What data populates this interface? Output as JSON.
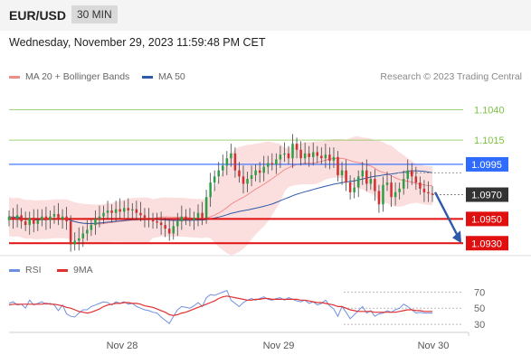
{
  "header": {
    "pair": "EUR/USD",
    "timeframe": "30 MIN",
    "datetime": "Wednesday, November 29, 2023 11:59:48 PM CET"
  },
  "legend": {
    "ma20_label": "MA 20 + Bollinger Bands",
    "ma20_color": "#f28b8b",
    "ma50_label": "MA 50",
    "ma50_color": "#2e5aa8",
    "credit": "Research © 2023 Trading Central"
  },
  "rsi_legend": {
    "rsi_label": "RSI",
    "rsi_color": "#6f8fe0",
    "ma9_label": "9MA",
    "ma9_color": "#e03030"
  },
  "chart_data": [
    {
      "type": "candlestick",
      "title": "EUR/USD",
      "timeframe": "30 MIN",
      "price_range": [
        1.0922,
        1.1056
      ],
      "levels": [
        {
          "value": 1.104,
          "label": "1.1040",
          "style": "resistance-target",
          "color": "#7cc242"
        },
        {
          "value": 1.1015,
          "label": "1.1015",
          "style": "resistance-target",
          "color": "#7cc242"
        },
        {
          "value": 1.0995,
          "label": "1.0995",
          "style": "pivot",
          "color": "#2f6bff"
        },
        {
          "value": 1.097,
          "label": "1.0970",
          "style": "last-price",
          "color": "#333333"
        },
        {
          "value": 1.095,
          "label": "1.0950",
          "style": "support",
          "color": "#e01010"
        },
        {
          "value": 1.093,
          "label": "1.0930",
          "style": "support",
          "color": "#e01010"
        }
      ],
      "x_ticks": [
        "Nov 28",
        "Nov 29",
        "Nov 30"
      ],
      "projection": {
        "from": 1.0972,
        "to": 1.093,
        "direction": "down",
        "color": "#2e5aa8"
      },
      "close_series": [
        1.0952,
        1.095,
        1.0953,
        1.0948,
        1.0945,
        1.0951,
        1.0946,
        1.0949,
        1.0952,
        1.0949,
        1.0952,
        1.0954,
        1.095,
        1.0952,
        1.0948,
        1.0929,
        1.0932,
        1.0934,
        1.0938,
        1.0941,
        1.0945,
        1.095,
        1.0952,
        1.0955,
        1.0957,
        1.0955,
        1.0958,
        1.0956,
        1.0959,
        1.0957,
        1.0958,
        1.0955,
        1.0953,
        1.0951,
        1.095,
        1.0948,
        1.0947,
        1.0945,
        1.0942,
        1.0938,
        1.0944,
        1.0948,
        1.0952,
        1.0951,
        1.0949,
        1.0951,
        1.0955,
        1.0951,
        1.0968,
        1.098,
        1.0985,
        1.099,
        1.0994,
        1.1,
        1.1004,
        1.099,
        1.0985,
        1.0979,
        1.0983,
        1.0986,
        1.099,
        1.0988,
        1.0993,
        1.0996,
        1.0995,
        1.0999,
        1.1003,
        1.1004,
        1.1,
        1.1012,
        1.1007,
        1.1,
        1.1004,
        1.1001,
        1.1005,
        1.1002,
        1.1,
        1.1003,
        1.0998,
        1.1001,
        1.0986,
        1.099,
        1.098,
        1.0972,
        1.0976,
        1.0985,
        1.099,
        1.0979,
        1.0983,
        1.0973,
        1.0962,
        1.0978,
        1.098,
        1.0968,
        1.0972,
        1.0975,
        1.0983,
        1.099,
        1.0985,
        1.098,
        1.0975,
        1.0972,
        1.0971,
        1.097
      ]
    },
    {
      "type": "line",
      "title": "RSI",
      "ylim": [
        20,
        85
      ],
      "y_ticks": [
        70,
        50,
        30
      ],
      "series": [
        {
          "name": "RSI",
          "values": [
            56,
            58,
            54,
            55,
            50,
            60,
            54,
            56,
            58,
            55,
            56,
            54,
            47,
            54,
            43,
            40,
            39,
            44,
            48,
            48,
            52,
            54,
            56,
            58,
            57,
            54,
            58,
            56,
            58,
            55,
            56,
            52,
            50,
            48,
            47,
            45,
            44,
            39,
            35,
            31,
            40,
            48,
            52,
            51,
            50,
            53,
            57,
            52,
            63,
            67,
            66,
            68,
            70,
            72,
            60,
            56,
            52,
            57,
            60,
            62,
            60,
            62,
            64,
            61,
            60,
            62,
            63,
            60,
            63,
            61,
            59,
            58,
            60,
            56,
            58,
            54,
            56,
            60,
            53,
            49,
            40,
            52,
            45,
            37,
            42,
            47,
            52,
            44,
            47,
            40,
            43,
            44,
            47,
            45,
            48,
            50,
            55,
            52,
            48,
            44,
            45,
            44,
            44,
            44
          ]
        },
        {
          "name": "9MA",
          "values": [
            54,
            55,
            55,
            55,
            55,
            55,
            55,
            55,
            55,
            56,
            55,
            55,
            54,
            53,
            51,
            50,
            48,
            46,
            45,
            44,
            45,
            47,
            49,
            52,
            54,
            55,
            56,
            56,
            57,
            57,
            56,
            56,
            55,
            53,
            52,
            51,
            49,
            47,
            45,
            42,
            41,
            42,
            44,
            45,
            47,
            49,
            51,
            53,
            55,
            57,
            59,
            62,
            64,
            65,
            64,
            63,
            62,
            61,
            60,
            60,
            61,
            61,
            62,
            62,
            61,
            61,
            61,
            61,
            61,
            61,
            61,
            60,
            60,
            59,
            58,
            57,
            57,
            56,
            55,
            54,
            52,
            52,
            50,
            48,
            47,
            46,
            46,
            46,
            46,
            45,
            45,
            45,
            45,
            45,
            45,
            46,
            47,
            48,
            48,
            47,
            47,
            46,
            46,
            46
          ]
        }
      ]
    }
  ]
}
